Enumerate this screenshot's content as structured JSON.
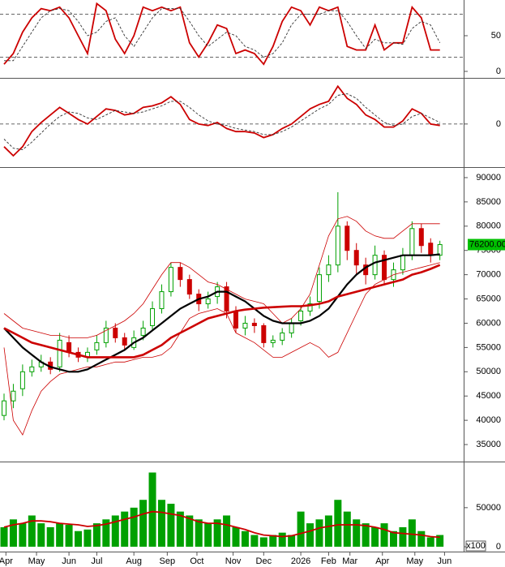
{
  "chart_data": [
    {
      "type": "line",
      "ylim": [
        0,
        100
      ],
      "yticks": [
        0,
        50
      ],
      "levels": [
        20,
        80
      ],
      "series": [
        {
          "color": "#cc0000",
          "values": [
            10,
            25,
            55,
            75,
            88,
            85,
            90,
            75,
            50,
            25,
            95,
            85,
            45,
            25,
            50,
            90,
            85,
            90,
            85,
            90,
            40,
            20,
            40,
            65,
            60,
            25,
            30,
            25,
            10,
            35,
            70,
            90,
            85,
            65,
            90,
            85,
            90,
            35,
            30,
            30,
            65,
            30,
            40,
            40,
            90,
            75,
            30,
            30
          ]
        },
        {
          "color": "#333333",
          "dashed": true,
          "values": [
            15,
            15,
            35,
            55,
            75,
            85,
            88,
            85,
            70,
            50,
            55,
            70,
            75,
            50,
            35,
            55,
            75,
            88,
            88,
            88,
            70,
            50,
            35,
            45,
            55,
            50,
            35,
            30,
            20,
            25,
            40,
            65,
            80,
            80,
            80,
            85,
            85,
            70,
            50,
            32,
            45,
            40,
            40,
            38,
            60,
            70,
            65,
            40
          ]
        }
      ]
    },
    {
      "type": "line",
      "ylim": [
        -2800,
        3000
      ],
      "yticks": [
        0
      ],
      "levels": [
        0
      ],
      "series": [
        {
          "color": "#cc0000",
          "values": [
            -1500,
            -2100,
            -1500,
            -500,
            100,
            600,
            1100,
            700,
            300,
            0,
            500,
            1000,
            900,
            600,
            700,
            1100,
            1200,
            1400,
            1800,
            1300,
            300,
            0,
            -100,
            100,
            -300,
            -500,
            -500,
            -600,
            -900,
            -700,
            -300,
            0,
            500,
            1000,
            1300,
            1500,
            2500,
            1700,
            1300,
            600,
            300,
            -200,
            -200,
            200,
            1000,
            700,
            0,
            -100
          ]
        },
        {
          "color": "#333333",
          "dashed": true,
          "values": [
            -1000,
            -1600,
            -1700,
            -1200,
            -600,
            0,
            500,
            800,
            700,
            400,
            300,
            600,
            900,
            800,
            700,
            800,
            1000,
            1200,
            1500,
            1500,
            1100,
            600,
            200,
            0,
            -100,
            -300,
            -400,
            -500,
            -700,
            -700,
            -500,
            -200,
            200,
            600,
            1000,
            1300,
            1900,
            2000,
            1700,
            1100,
            600,
            100,
            -100,
            0,
            500,
            700,
            400,
            100
          ]
        }
      ]
    },
    {
      "type": "candlestick",
      "ylim": [
        32000,
        92000
      ],
      "yticks": [
        35000,
        40000,
        45000,
        50000,
        55000,
        60000,
        65000,
        70000,
        75000,
        80000,
        85000,
        90000
      ],
      "up_color": "#00a000",
      "down_color": "#cc0000",
      "open": [
        41000,
        44000,
        46500,
        50000,
        51000,
        52000,
        51000,
        56000,
        54000,
        53000,
        54500,
        56000,
        59000,
        57000,
        55000,
        57500,
        59500,
        63000,
        66500,
        71500,
        69000,
        66000,
        64000,
        65500,
        67500,
        62500,
        59000,
        60000,
        59500,
        56000,
        56500,
        58000,
        60500,
        62500,
        64500,
        70000,
        72000,
        80000,
        75000,
        72000,
        70000,
        74000,
        69000,
        71000,
        74000,
        79500,
        76500,
        74000
      ],
      "high": [
        45500,
        47500,
        51500,
        52500,
        53500,
        53000,
        58000,
        57500,
        55000,
        55000,
        57500,
        60500,
        60000,
        58000,
        58500,
        60500,
        64500,
        68000,
        72500,
        72500,
        70000,
        67000,
        66500,
        68500,
        68500,
        63500,
        61500,
        61000,
        60000,
        57500,
        59000,
        61000,
        63500,
        65500,
        71500,
        74000,
        87000,
        81000,
        76500,
        73500,
        76000,
        75000,
        72500,
        75500,
        81000,
        80500,
        77500,
        77000
      ],
      "low": [
        40000,
        42500,
        45000,
        49000,
        50000,
        49500,
        50000,
        53000,
        52000,
        52000,
        53500,
        55000,
        56000,
        54500,
        54500,
        56500,
        58500,
        62000,
        65500,
        67500,
        65000,
        62500,
        63000,
        64000,
        61000,
        58000,
        57500,
        58000,
        55000,
        55000,
        55500,
        57000,
        59500,
        61500,
        63000,
        68500,
        70500,
        73000,
        70000,
        68000,
        69000,
        68000,
        67500,
        70000,
        73000,
        74500,
        72500,
        73000
      ],
      "close": [
        44000,
        46000,
        50000,
        51000,
        52000,
        50500,
        56500,
        54000,
        53000,
        54000,
        56000,
        59000,
        57000,
        55500,
        57000,
        59000,
        63000,
        66500,
        71500,
        69000,
        66000,
        64000,
        65000,
        67500,
        62500,
        59000,
        60000,
        59500,
        56000,
        56500,
        58000,
        60000,
        62500,
        64000,
        70000,
        72000,
        80000,
        75000,
        72000,
        70000,
        74000,
        69000,
        71000,
        74000,
        79500,
        76000,
        74000,
        76200
      ],
      "price_marker": {
        "value": 76200,
        "label": "76200.00"
      },
      "price_marker_color": "#00c000",
      "series": [
        {
          "color": "#cc0000",
          "width": 0.8,
          "values": [
            62000,
            60500,
            59000,
            58500,
            58000,
            57500,
            57500,
            57000,
            57000,
            57000,
            57500,
            58500,
            59500,
            60500,
            62000,
            64000,
            67000,
            70000,
            72500,
            72500,
            71500,
            70000,
            68500,
            68000,
            67000,
            66000,
            65000,
            64500,
            64000,
            62000,
            60000,
            61000,
            63000,
            66000,
            72000,
            78000,
            81500,
            82000,
            81000,
            79000,
            78000,
            77500,
            77500,
            79000,
            80500,
            80500,
            80500,
            80500
          ]
        },
        {
          "color": "#cc0000",
          "width": 0.8,
          "values": [
            55000,
            40000,
            37000,
            42000,
            46000,
            48000,
            49500,
            50000,
            50500,
            51000,
            51000,
            51500,
            52000,
            52000,
            52500,
            53000,
            53000,
            53500,
            55000,
            58000,
            61000,
            62000,
            62500,
            63000,
            62000,
            58000,
            57000,
            56000,
            54500,
            53000,
            53000,
            54000,
            55000,
            56000,
            55000,
            53000,
            54000,
            58000,
            62000,
            66000,
            68000,
            69000,
            70000,
            70500,
            71000,
            71500,
            72000,
            72500
          ]
        },
        {
          "color": "#000000",
          "width": 2.2,
          "values": [
            59000,
            57000,
            55000,
            53500,
            52000,
            51000,
            50500,
            50000,
            50000,
            50500,
            51500,
            52500,
            53500,
            54500,
            56000,
            57000,
            58500,
            60000,
            61500,
            63000,
            64000,
            65000,
            65500,
            66500,
            66500,
            65500,
            64500,
            63000,
            61500,
            60500,
            60000,
            60000,
            60000,
            60500,
            61500,
            63000,
            65500,
            68000,
            70000,
            71500,
            72500,
            73000,
            73500,
            74000,
            74000,
            74000,
            74000,
            74200
          ]
        },
        {
          "color": "#cc0000",
          "width": 2.6,
          "values": [
            59000,
            58000,
            57000,
            56000,
            55500,
            55000,
            54500,
            54000,
            53500,
            53000,
            53000,
            53000,
            53000,
            53000,
            53000,
            53500,
            54500,
            55500,
            57000,
            58000,
            59000,
            60000,
            61000,
            61500,
            62000,
            62500,
            62800,
            63000,
            63200,
            63300,
            63400,
            63500,
            63500,
            63700,
            64000,
            64500,
            65500,
            66000,
            66500,
            67000,
            67500,
            68000,
            68500,
            69000,
            70000,
            70500,
            71200,
            72000
          ]
        }
      ]
    },
    {
      "type": "bar",
      "ylim": [
        0,
        108000
      ],
      "yticks": [
        0,
        50000
      ],
      "unit_label": "x100",
      "color": "#00a000",
      "values": [
        25000,
        35000,
        30000,
        40000,
        30000,
        25000,
        30000,
        28000,
        20000,
        22000,
        30000,
        35000,
        40000,
        45000,
        50000,
        60000,
        95000,
        60000,
        55000,
        45000,
        40000,
        35000,
        30000,
        35000,
        40000,
        25000,
        20000,
        15000,
        12000,
        15000,
        18000,
        15000,
        45000,
        30000,
        35000,
        40000,
        60000,
        45000,
        35000,
        30000,
        25000,
        30000,
        20000,
        25000,
        35000,
        20000,
        12000,
        15000
      ],
      "series": [
        {
          "color": "#cc0000",
          "values": [
            25000,
            28000,
            30000,
            33000,
            33000,
            32000,
            30000,
            29000,
            28000,
            26000,
            27000,
            29000,
            32000,
            35000,
            38000,
            42000,
            45000,
            44000,
            42000,
            40000,
            36000,
            32000,
            30000,
            30000,
            28000,
            25000,
            22000,
            18000,
            15000,
            14000,
            13000,
            14000,
            17000,
            20000,
            24000,
            26000,
            28000,
            28000,
            28000,
            27000,
            25000,
            22000,
            18000,
            17000,
            16000,
            15000,
            13000,
            12000
          ]
        }
      ],
      "xticks": [
        {
          "value": 0.2,
          "label": "Apr"
        },
        {
          "value": 3.5,
          "label": "May"
        },
        {
          "value": 7,
          "label": "Jun"
        },
        {
          "value": 10,
          "label": "Jul"
        },
        {
          "value": 14,
          "label": "Aug"
        },
        {
          "value": 17.6,
          "label": "Sep"
        },
        {
          "value": 20.8,
          "label": "Oct"
        },
        {
          "value": 24.7,
          "label": "Nov"
        },
        {
          "value": 28,
          "label": "Dec"
        },
        {
          "value": 32,
          "label": "2026"
        },
        {
          "value": 35,
          "label": "Feb"
        },
        {
          "value": 37.3,
          "label": "Mar"
        },
        {
          "value": 40.8,
          "label": "Apr"
        },
        {
          "value": 44.3,
          "label": "May"
        },
        {
          "value": 47.5,
          "label": "Jun"
        }
      ]
    }
  ]
}
